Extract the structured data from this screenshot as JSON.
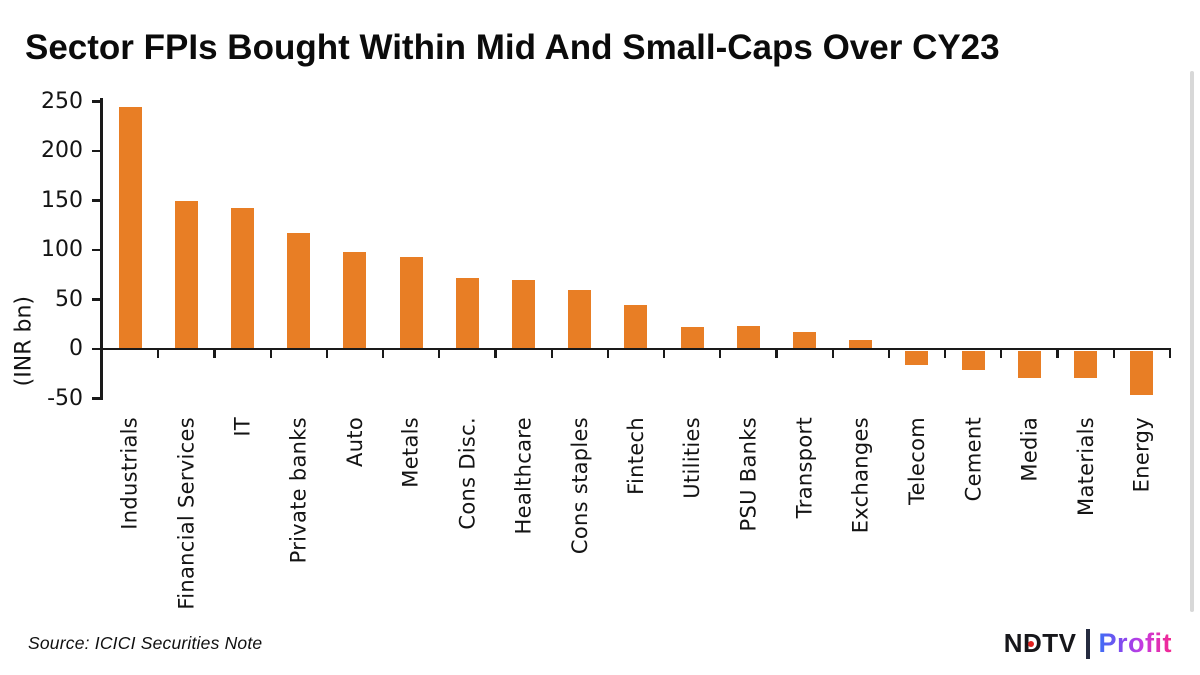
{
  "source": "Source: ICICI Securities Note",
  "logo": {
    "ndtv": "NDTV",
    "profit": "Profit"
  },
  "colors": {
    "bar": "#E87E25",
    "axis": "#1A1A1A",
    "ndtv_dot": "#E1201F",
    "logo_separator": "#252B3F",
    "profit_gradient": [
      "#3E6EF5",
      "#8A46EE",
      "#C73BE0",
      "#F5278F"
    ],
    "scrollbar": "#D8D8D8"
  },
  "chart_data": {
    "type": "bar",
    "title": "Sector FPIs Bought Within Mid And Small-Caps Over CY23",
    "xlabel": "",
    "ylabel": "(INR bn)",
    "categories": [
      "Industrials",
      "Financial Services",
      "IT",
      "Private banks",
      "Auto",
      "Metals",
      "Cons Disc.",
      "Healthcare",
      "Cons staples",
      "Fintech",
      "Utilities",
      "PSU Banks",
      "Transport",
      "Exchanges",
      "Telecom",
      "Cement",
      "Media",
      "Materials",
      "Energy"
    ],
    "values": [
      244,
      150,
      142,
      117,
      98,
      93,
      72,
      70,
      60,
      44,
      22,
      23,
      17,
      9,
      -15,
      -20,
      -28,
      -28,
      -45
    ],
    "yticks": [
      250,
      200,
      150,
      100,
      50,
      0,
      -50
    ],
    "ylim": [
      -50,
      250
    ],
    "grid": false,
    "legend": null,
    "bar_color": "#E87E25"
  }
}
